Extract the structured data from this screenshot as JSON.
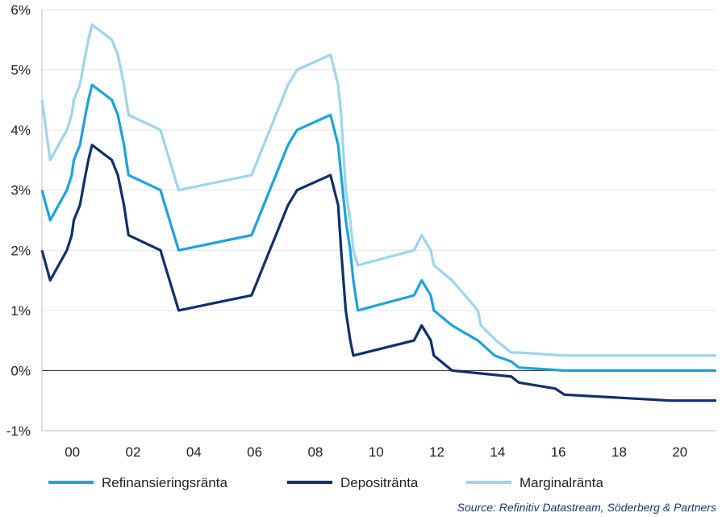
{
  "chart_data": {
    "type": "line",
    "source": "Source: Refinitiv Datastream, Söderberg & Partners",
    "xlim": [
      1999,
      2021.2
    ],
    "ylim": [
      -1,
      6
    ],
    "x_ticks": [
      {
        "value": 2000,
        "label": "00"
      },
      {
        "value": 2002,
        "label": "02"
      },
      {
        "value": 2004,
        "label": "04"
      },
      {
        "value": 2006,
        "label": "06"
      },
      {
        "value": 2008,
        "label": "08"
      },
      {
        "value": 2010,
        "label": "10"
      },
      {
        "value": 2012,
        "label": "12"
      },
      {
        "value": 2014,
        "label": "14"
      },
      {
        "value": 2016,
        "label": "16"
      },
      {
        "value": 2018,
        "label": "18"
      },
      {
        "value": 2020,
        "label": "20"
      }
    ],
    "y_ticks": [
      {
        "value": 6,
        "label": "6%"
      },
      {
        "value": 5,
        "label": "5%"
      },
      {
        "value": 4,
        "label": "4%"
      },
      {
        "value": 3,
        "label": "3%"
      },
      {
        "value": 2,
        "label": "2%"
      },
      {
        "value": 1,
        "label": "1%"
      },
      {
        "value": 0,
        "label": "0%"
      },
      {
        "value": -1,
        "label": "-1%"
      }
    ],
    "grid": "horizontal",
    "legend": "bottom",
    "series": [
      {
        "name": "Marginalränta",
        "color": "#9dd5ec",
        "points": [
          [
            1999.0,
            4.5
          ],
          [
            1999.27,
            3.5
          ],
          [
            1999.82,
            4.0
          ],
          [
            1999.98,
            4.25
          ],
          [
            2000.05,
            4.5
          ],
          [
            2000.25,
            4.75
          ],
          [
            2000.43,
            5.25
          ],
          [
            2000.53,
            5.5
          ],
          [
            2000.65,
            5.75
          ],
          [
            2001.3,
            5.5
          ],
          [
            2001.5,
            5.25
          ],
          [
            2001.7,
            4.75
          ],
          [
            2001.85,
            4.25
          ],
          [
            2002.9,
            4.0
          ],
          [
            2003.05,
            3.75
          ],
          [
            2003.2,
            3.5
          ],
          [
            2003.5,
            3.0
          ],
          [
            2005.9,
            3.25
          ],
          [
            2006.1,
            3.5
          ],
          [
            2006.3,
            3.75
          ],
          [
            2006.5,
            4.0
          ],
          [
            2006.7,
            4.25
          ],
          [
            2006.9,
            4.5
          ],
          [
            2007.1,
            4.75
          ],
          [
            2007.4,
            5.0
          ],
          [
            2008.5,
            5.25
          ],
          [
            2008.75,
            4.75
          ],
          [
            2008.85,
            4.25
          ],
          [
            2009.0,
            3.0
          ],
          [
            2009.15,
            2.5
          ],
          [
            2009.25,
            2.0
          ],
          [
            2009.4,
            1.75
          ],
          [
            2011.25,
            2.0
          ],
          [
            2011.5,
            2.25
          ],
          [
            2011.8,
            2.0
          ],
          [
            2011.9,
            1.75
          ],
          [
            2012.5,
            1.5
          ],
          [
            2013.35,
            1.0
          ],
          [
            2013.45,
            0.75
          ],
          [
            2013.95,
            0.5
          ],
          [
            2014.45,
            0.3
          ],
          [
            2014.7,
            0.3
          ],
          [
            2016.2,
            0.25
          ],
          [
            2021.2,
            0.25
          ]
        ]
      },
      {
        "name": "Refinansieringsränta",
        "color": "#1ca3dc",
        "points": [
          [
            1999.0,
            3.0
          ],
          [
            1999.27,
            2.5
          ],
          [
            1999.82,
            3.0
          ],
          [
            1999.98,
            3.25
          ],
          [
            2000.05,
            3.5
          ],
          [
            2000.25,
            3.75
          ],
          [
            2000.43,
            4.25
          ],
          [
            2000.53,
            4.5
          ],
          [
            2000.65,
            4.75
          ],
          [
            2001.3,
            4.5
          ],
          [
            2001.5,
            4.25
          ],
          [
            2001.7,
            3.75
          ],
          [
            2001.85,
            3.25
          ],
          [
            2002.9,
            3.0
          ],
          [
            2003.05,
            2.75
          ],
          [
            2003.2,
            2.5
          ],
          [
            2003.5,
            2.0
          ],
          [
            2005.9,
            2.25
          ],
          [
            2006.1,
            2.5
          ],
          [
            2006.3,
            2.75
          ],
          [
            2006.5,
            3.0
          ],
          [
            2006.7,
            3.25
          ],
          [
            2006.9,
            3.5
          ],
          [
            2007.1,
            3.75
          ],
          [
            2007.4,
            4.0
          ],
          [
            2008.5,
            4.25
          ],
          [
            2008.75,
            3.75
          ],
          [
            2008.85,
            3.25
          ],
          [
            2009.0,
            2.5
          ],
          [
            2009.15,
            2.0
          ],
          [
            2009.25,
            1.5
          ],
          [
            2009.4,
            1.0
          ],
          [
            2011.25,
            1.25
          ],
          [
            2011.5,
            1.5
          ],
          [
            2011.8,
            1.25
          ],
          [
            2011.9,
            1.0
          ],
          [
            2012.5,
            0.75
          ],
          [
            2013.35,
            0.5
          ],
          [
            2013.9,
            0.25
          ],
          [
            2014.45,
            0.15
          ],
          [
            2014.7,
            0.05
          ],
          [
            2016.2,
            0.0
          ],
          [
            2021.2,
            0.0
          ]
        ]
      },
      {
        "name": "Depositränta",
        "color": "#0f2f6e",
        "points": [
          [
            1999.0,
            2.0
          ],
          [
            1999.27,
            1.5
          ],
          [
            1999.82,
            2.0
          ],
          [
            1999.98,
            2.25
          ],
          [
            2000.05,
            2.5
          ],
          [
            2000.25,
            2.75
          ],
          [
            2000.43,
            3.25
          ],
          [
            2000.53,
            3.5
          ],
          [
            2000.65,
            3.75
          ],
          [
            2001.3,
            3.5
          ],
          [
            2001.5,
            3.25
          ],
          [
            2001.7,
            2.75
          ],
          [
            2001.85,
            2.25
          ],
          [
            2002.9,
            2.0
          ],
          [
            2003.05,
            1.75
          ],
          [
            2003.2,
            1.5
          ],
          [
            2003.5,
            1.0
          ],
          [
            2005.9,
            1.25
          ],
          [
            2006.1,
            1.5
          ],
          [
            2006.3,
            1.75
          ],
          [
            2006.5,
            2.0
          ],
          [
            2006.7,
            2.25
          ],
          [
            2006.9,
            2.5
          ],
          [
            2007.1,
            2.75
          ],
          [
            2007.4,
            3.0
          ],
          [
            2008.5,
            3.25
          ],
          [
            2008.75,
            2.75
          ],
          [
            2008.85,
            2.0
          ],
          [
            2009.0,
            1.0
          ],
          [
            2009.15,
            0.5
          ],
          [
            2009.25,
            0.25
          ],
          [
            2011.25,
            0.5
          ],
          [
            2011.5,
            0.75
          ],
          [
            2011.8,
            0.5
          ],
          [
            2011.9,
            0.25
          ],
          [
            2012.5,
            0.0
          ],
          [
            2014.45,
            -0.1
          ],
          [
            2014.7,
            -0.2
          ],
          [
            2015.9,
            -0.3
          ],
          [
            2016.2,
            -0.4
          ],
          [
            2019.7,
            -0.5
          ],
          [
            2021.2,
            -0.5
          ]
        ]
      }
    ],
    "legend_order": [
      "Refinansieringsränta",
      "Depositränta",
      "Marginalränta"
    ]
  }
}
